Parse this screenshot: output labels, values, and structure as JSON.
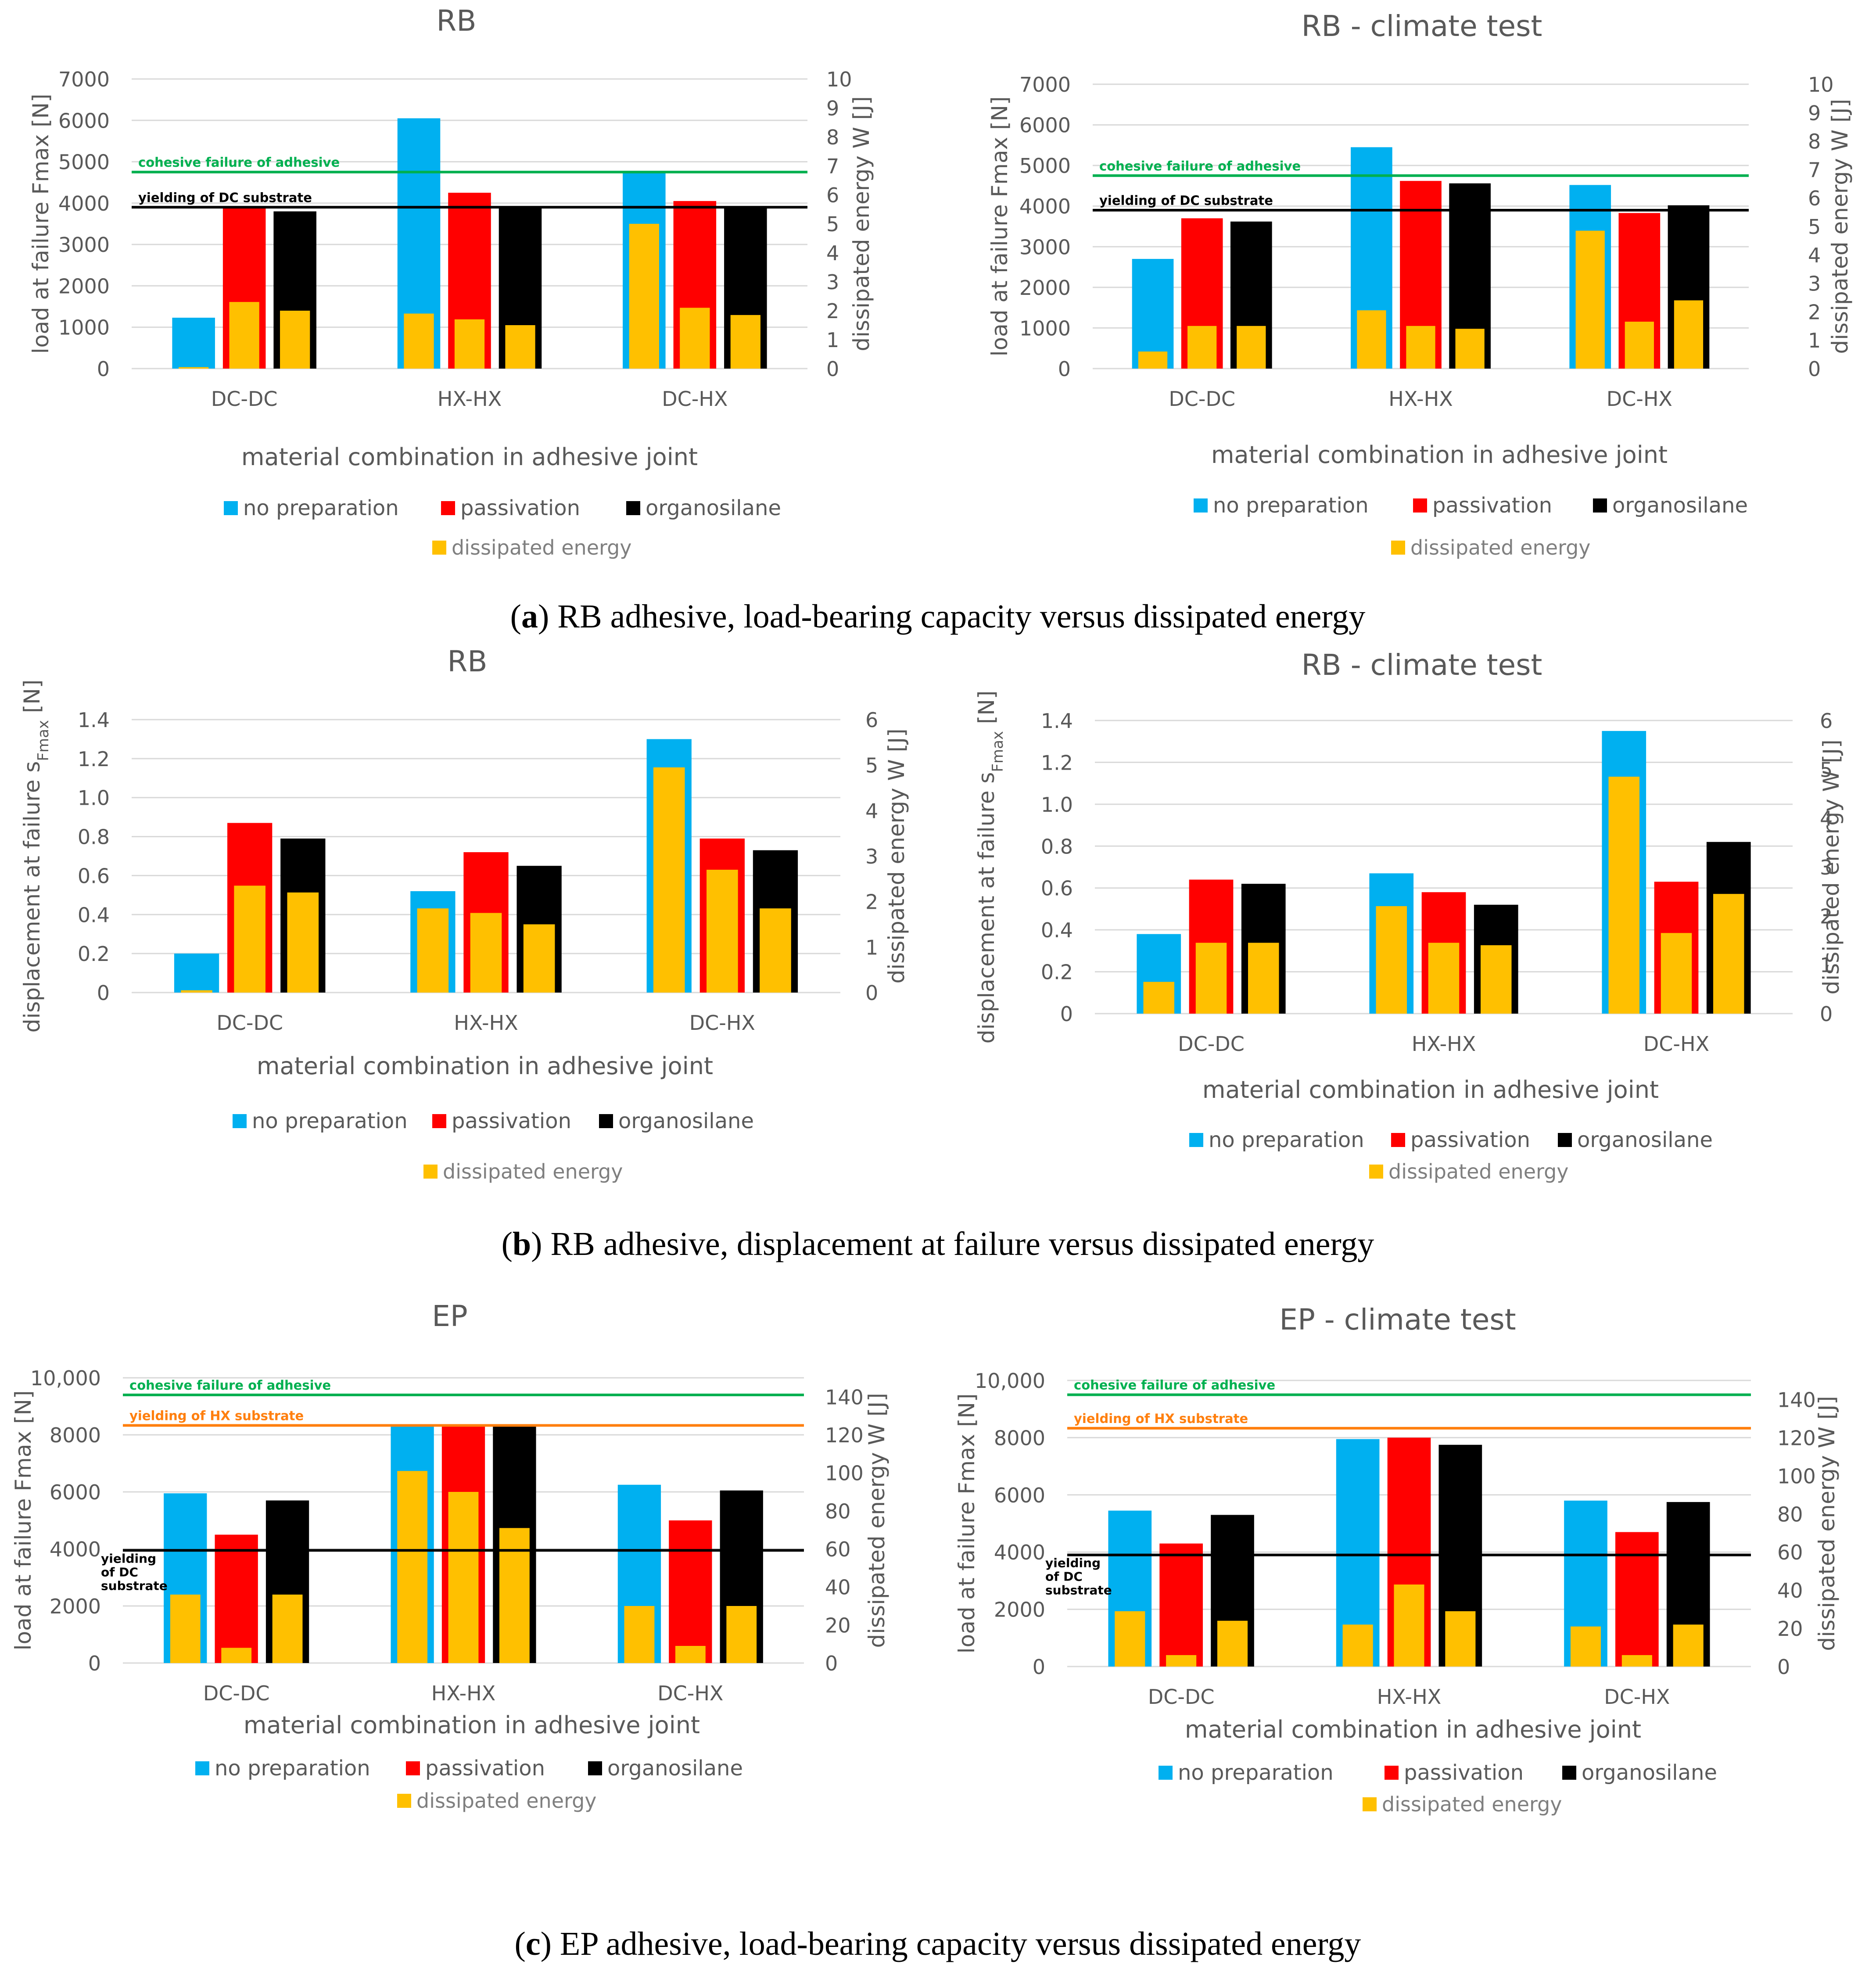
{
  "legend": {
    "no_preparation": "no preparation",
    "passivation": "passivation",
    "organosilane": "organosilane",
    "dissipated_energy": "dissipated energy"
  },
  "colors": {
    "no_preparation": "#00b0f0",
    "passivation": "#ff0000",
    "organosilane": "#000000",
    "dissipated_energy": "#ffc000",
    "cohesive": "#00b050",
    "yield_hx": "#ff7f0e",
    "yield_dc": "#000000",
    "grid": "#d9d9d9"
  },
  "captions": [
    {
      "letter": "a",
      "text": " RB adhesive, load-bearing capacity versus dissipated energy"
    },
    {
      "letter": "b",
      "text": " RB adhesive, displacement at failure versus dissipated energy"
    },
    {
      "letter": "c",
      "text": " EP adhesive, load-bearing capacity versus dissipated energy"
    }
  ],
  "chart_data": [
    {
      "type": "bar",
      "title": "RB",
      "categories": [
        "DC-DC",
        "HX-HX",
        "DC-HX"
      ],
      "xlabel": "material combination in adhesive joint",
      "ylabel": "load at failure Fmax [N]",
      "y2label": "dissipated energy W [J]",
      "ylim": [
        0,
        7000
      ],
      "yticks": [
        0,
        1000,
        2000,
        3000,
        4000,
        5000,
        6000,
        7000
      ],
      "ytick_labels": [
        "0",
        "1000",
        "2000",
        "3000",
        "4000",
        "5000",
        "6000",
        "7000"
      ],
      "y2lim": [
        0,
        10
      ],
      "y2ticks": [
        0,
        1,
        2,
        3,
        4,
        5,
        6,
        7,
        8,
        9,
        10
      ],
      "series": [
        {
          "name": "no preparation",
          "values": [
            1230,
            6050,
            4730
          ]
        },
        {
          "name": "passivation",
          "values": [
            3880,
            4250,
            4050
          ]
        },
        {
          "name": "organosilane",
          "values": [
            3800,
            3900,
            3900
          ]
        }
      ],
      "energy": {
        "name": "dissipated energy",
        "values": [
          [
            0.05,
            2.3,
            2.0
          ],
          [
            1.9,
            1.7,
            1.5
          ],
          [
            5.0,
            2.1,
            1.85
          ]
        ]
      },
      "reference_lines": [
        {
          "label": "cohesive failure of adhesive",
          "value": 4750,
          "color": "#00b050"
        },
        {
          "label": "yielding of DC substrate",
          "value": 3900,
          "color": "#000000"
        }
      ]
    },
    {
      "type": "bar",
      "title": "RB - climate test",
      "categories": [
        "DC-DC",
        "HX-HX",
        "DC-HX"
      ],
      "xlabel": "material combination in adhesive joint",
      "ylabel": "load at failure Fmax [N]",
      "y2label": "dissipated energy W [J]",
      "ylim": [
        0,
        7000
      ],
      "yticks": [
        0,
        1000,
        2000,
        3000,
        4000,
        5000,
        6000,
        7000
      ],
      "ytick_labels": [
        "0",
        "1000",
        "2000",
        "3000",
        "4000",
        "5000",
        "6000",
        "7000"
      ],
      "y2lim": [
        0,
        10
      ],
      "y2ticks": [
        0,
        1,
        2,
        3,
        4,
        5,
        6,
        7,
        8,
        9,
        10
      ],
      "series": [
        {
          "name": "no preparation",
          "values": [
            2700,
            5450,
            4520
          ]
        },
        {
          "name": "passivation",
          "values": [
            3700,
            4620,
            3830
          ]
        },
        {
          "name": "organosilane",
          "values": [
            3620,
            4560,
            4020
          ]
        }
      ],
      "energy": {
        "name": "dissipated energy",
        "values": [
          [
            0.6,
            1.5,
            1.5
          ],
          [
            2.05,
            1.5,
            1.4
          ],
          [
            4.85,
            1.65,
            2.4
          ]
        ]
      },
      "reference_lines": [
        {
          "label": "cohesive failure of adhesive",
          "value": 4750,
          "color": "#00b050"
        },
        {
          "label": "yielding of DC substrate",
          "value": 3900,
          "color": "#000000"
        }
      ]
    },
    {
      "type": "bar",
      "title": "RB",
      "categories": [
        "DC-DC",
        "HX-HX",
        "DC-HX"
      ],
      "xlabel": "material combination in adhesive joint",
      "ylabel": "displacement at failure s",
      "ylabel_sub": "Fmax",
      "ylabel_end": " [N]",
      "y2label": "dissipated energy W [J]",
      "ylim": [
        0,
        1.4
      ],
      "yticks": [
        0,
        0.2,
        0.4,
        0.6,
        0.8,
        1.0,
        1.2,
        1.4
      ],
      "ytick_labels": [
        "0",
        "0.2",
        "0.4",
        "0.6",
        "0.8",
        "1.0",
        "1.2",
        "1.4"
      ],
      "y2lim": [
        0,
        6
      ],
      "y2ticks": [
        0,
        1,
        2,
        3,
        4,
        5,
        6
      ],
      "series": [
        {
          "name": "no preparation",
          "values": [
            0.2,
            0.52,
            1.3
          ]
        },
        {
          "name": "passivation",
          "values": [
            0.87,
            0.72,
            0.79
          ]
        },
        {
          "name": "organosilane",
          "values": [
            0.79,
            0.65,
            0.73
          ]
        }
      ],
      "energy": {
        "name": "dissipated energy",
        "values": [
          [
            0.05,
            2.35,
            2.2
          ],
          [
            1.85,
            1.75,
            1.5
          ],
          [
            4.95,
            2.7,
            1.85
          ]
        ]
      },
      "reference_lines": []
    },
    {
      "type": "bar",
      "title": "RB - climate test",
      "categories": [
        "DC-DC",
        "HX-HX",
        "DC-HX"
      ],
      "xlabel": "material combination in adhesive joint",
      "ylabel": "displacement at failure s",
      "ylabel_sub": "Fmax",
      "ylabel_end": " [N]",
      "y2label": "dissipated energy W [J]",
      "ylim": [
        0,
        1.4
      ],
      "yticks": [
        0,
        0.2,
        0.4,
        0.6,
        0.8,
        1.0,
        1.2,
        1.4
      ],
      "ytick_labels": [
        "0",
        "0.2",
        "0.4",
        "0.6",
        "0.8",
        "1.0",
        "1.2",
        "1.4"
      ],
      "y2lim": [
        0,
        6
      ],
      "y2ticks": [
        0,
        1,
        2,
        3,
        4,
        5,
        6
      ],
      "series": [
        {
          "name": "no preparation",
          "values": [
            0.38,
            0.67,
            1.35
          ]
        },
        {
          "name": "passivation",
          "values": [
            0.64,
            0.58,
            0.63
          ]
        },
        {
          "name": "organosilane",
          "values": [
            0.62,
            0.52,
            0.82
          ]
        }
      ],
      "energy": {
        "name": "dissipated energy",
        "values": [
          [
            0.65,
            1.45,
            1.45
          ],
          [
            2.2,
            1.45,
            1.4
          ],
          [
            4.85,
            1.65,
            2.45
          ]
        ]
      },
      "reference_lines": []
    },
    {
      "type": "bar",
      "title": "EP",
      "categories": [
        "DC-DC",
        "HX-HX",
        "DC-HX"
      ],
      "xlabel": "material combination in adhesive joint",
      "ylabel": "load at failure Fmax [N]",
      "y2label": "dissipated energy W [J]",
      "ylim": [
        0,
        10000
      ],
      "yticks": [
        0,
        2000,
        4000,
        6000,
        8000,
        10000
      ],
      "ytick_labels": [
        "0",
        "2000",
        "4000",
        "6000",
        "8000",
        "10,000"
      ],
      "y2lim": [
        0,
        150
      ],
      "y2ticks": [
        0,
        20,
        40,
        60,
        80,
        100,
        120,
        140
      ],
      "series": [
        {
          "name": "no preparation",
          "values": [
            5950,
            8350,
            6250
          ]
        },
        {
          "name": "passivation",
          "values": [
            4500,
            8300,
            5000
          ]
        },
        {
          "name": "organosilane",
          "values": [
            5700,
            8300,
            6050
          ]
        }
      ],
      "energy": {
        "name": "dissipated energy",
        "values": [
          [
            36,
            8,
            36
          ],
          [
            101,
            90,
            71
          ],
          [
            30,
            9,
            30
          ]
        ]
      },
      "reference_lines": [
        {
          "label": "cohesive failure of adhesive",
          "value": 9400,
          "color": "#00b050"
        },
        {
          "label": "yielding of HX substrate",
          "value": 8330,
          "color": "#ff7f0e"
        },
        {
          "label": "yielding of DC substrate",
          "value": 3950,
          "color": "#000000",
          "label_lines": [
            "yielding",
            "of DC",
            "substrate"
          ]
        }
      ]
    },
    {
      "type": "bar",
      "title": "EP - climate test",
      "categories": [
        "DC-DC",
        "HX-HX",
        "DC-HX"
      ],
      "xlabel": "material combination in adhesive joint",
      "ylabel": "load at failure Fmax [N]",
      "y2label": "dissipated energy W [J]",
      "ylim": [
        0,
        10000
      ],
      "yticks": [
        0,
        2000,
        4000,
        6000,
        8000,
        10000
      ],
      "ytick_labels": [
        "0",
        "2000",
        "4000",
        "6000",
        "8000",
        "10,000"
      ],
      "y2lim": [
        0,
        150
      ],
      "y2ticks": [
        0,
        20,
        40,
        60,
        80,
        100,
        120,
        140
      ],
      "series": [
        {
          "name": "no preparation",
          "values": [
            5450,
            7950,
            5800
          ]
        },
        {
          "name": "passivation",
          "values": [
            4300,
            8000,
            4700
          ]
        },
        {
          "name": "organosilane",
          "values": [
            5300,
            7750,
            5750
          ]
        }
      ],
      "energy": {
        "name": "dissipated energy",
        "values": [
          [
            29,
            6,
            24
          ],
          [
            22,
            43,
            29
          ],
          [
            21,
            6,
            22
          ]
        ]
      },
      "reference_lines": [
        {
          "label": "cohesive failure of adhesive",
          "value": 9500,
          "color": "#00b050"
        },
        {
          "label": "yielding of HX substrate",
          "value": 8330,
          "color": "#ff7f0e"
        },
        {
          "label": "yielding of DC substrate",
          "value": 3900,
          "color": "#000000",
          "label_lines": [
            "yielding",
            "of DC",
            "substrate"
          ]
        }
      ]
    }
  ]
}
